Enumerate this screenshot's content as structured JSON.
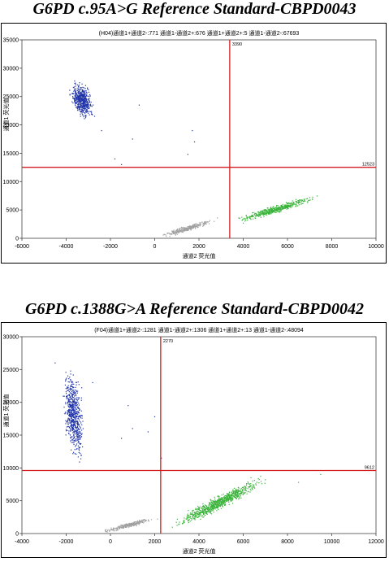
{
  "titles": [
    "G6PD c.95A>G Reference Standard-CBPD0043",
    "G6PD c.1388G>A Reference Standard-CBPD0042"
  ],
  "chart_data": [
    {
      "type": "scatter",
      "title": "(H04)通道1+通道2-:771    通道1-通道2+:676    通道1+通道2+:5    通道1-通道2-:67693",
      "xlabel": "通道2 荧光值",
      "ylabel": "通道1 荧光值",
      "xlim": [
        -6000,
        10000
      ],
      "ylim": [
        0,
        35000
      ],
      "xticks": [
        -6000,
        -4000,
        -2000,
        0,
        2000,
        4000,
        6000,
        8000,
        10000
      ],
      "yticks": [
        0,
        5000,
        10000,
        15000,
        20000,
        25000,
        30000,
        35000
      ],
      "threshold_x": 3390,
      "threshold_y": 12523,
      "threshold_x_label": "3390",
      "threshold_y_label": "12523",
      "grid": false,
      "series": [
        {
          "color": "#1f33a8",
          "clusters": [
            {
              "x": [
                -3900,
                -2700
              ],
              "y": [
                21000,
                28000
              ],
              "n": 520
            }
          ],
          "stray": [
            [
              -1500,
              13000
            ],
            [
              -1800,
              14000
            ],
            [
              -1000,
              17500
            ],
            [
              -700,
              23500
            ],
            [
              1500,
              14800
            ],
            [
              1800,
              17000
            ],
            [
              -2400,
              19000
            ],
            [
              1700,
              19000
            ]
          ]
        },
        {
          "color": "#a0a0a0",
          "clusters": [
            {
              "x": [
                0,
                3000
              ],
              "y": [
                0,
                3500
              ],
              "n": 300
            }
          ],
          "stray": []
        },
        {
          "color": "#3cb43c",
          "clusters": [
            {
              "x": [
                3500,
                7500
              ],
              "y": [
                2800,
                7500
              ],
              "n": 520
            }
          ],
          "stray": []
        }
      ]
    },
    {
      "type": "scatter",
      "title": "(F04)通道1+通道2-:1281    通道1-通道2+:1306    通道1+通道2+:13    通道1-通道2-:48094",
      "xlabel": "通道2 荧光值",
      "ylabel": "通道1 荧光值",
      "xlim": [
        -4000,
        12000
      ],
      "ylim": [
        0,
        30000
      ],
      "xticks": [
        -4000,
        -2000,
        0,
        2000,
        4000,
        6000,
        8000,
        10000,
        12000
      ],
      "yticks": [
        0,
        5000,
        10000,
        15000,
        20000,
        25000,
        30000
      ],
      "threshold_x": 2270,
      "threshold_y": 9612,
      "threshold_x_label": "2270",
      "threshold_y_label": "9612",
      "grid": false,
      "series": [
        {
          "color": "#1f33a8",
          "clusters": [
            {
              "x": [
                -2200,
                -1100
              ],
              "y": [
                11000,
                25000
              ],
              "n": 640
            }
          ],
          "stray": [
            [
              -2500,
              26000
            ],
            [
              500,
              14500
            ],
            [
              1000,
              16000
            ],
            [
              1700,
              15500
            ],
            [
              2000,
              17800
            ],
            [
              800,
              19500
            ],
            [
              -800,
              23000
            ],
            [
              2300,
              11500
            ]
          ]
        },
        {
          "color": "#a0a0a0",
          "clusters": [
            {
              "x": [
                -600,
                2200
              ],
              "y": [
                0,
                2500
              ],
              "n": 280
            }
          ],
          "stray": []
        },
        {
          "color": "#3cb43c",
          "clusters": [
            {
              "x": [
                2600,
                7200
              ],
              "y": [
                800,
                8600
              ],
              "n": 820
            }
          ],
          "stray": [
            [
              8500,
              7800
            ],
            [
              9500,
              9000
            ],
            [
              7000,
              8200
            ]
          ]
        }
      ]
    }
  ]
}
